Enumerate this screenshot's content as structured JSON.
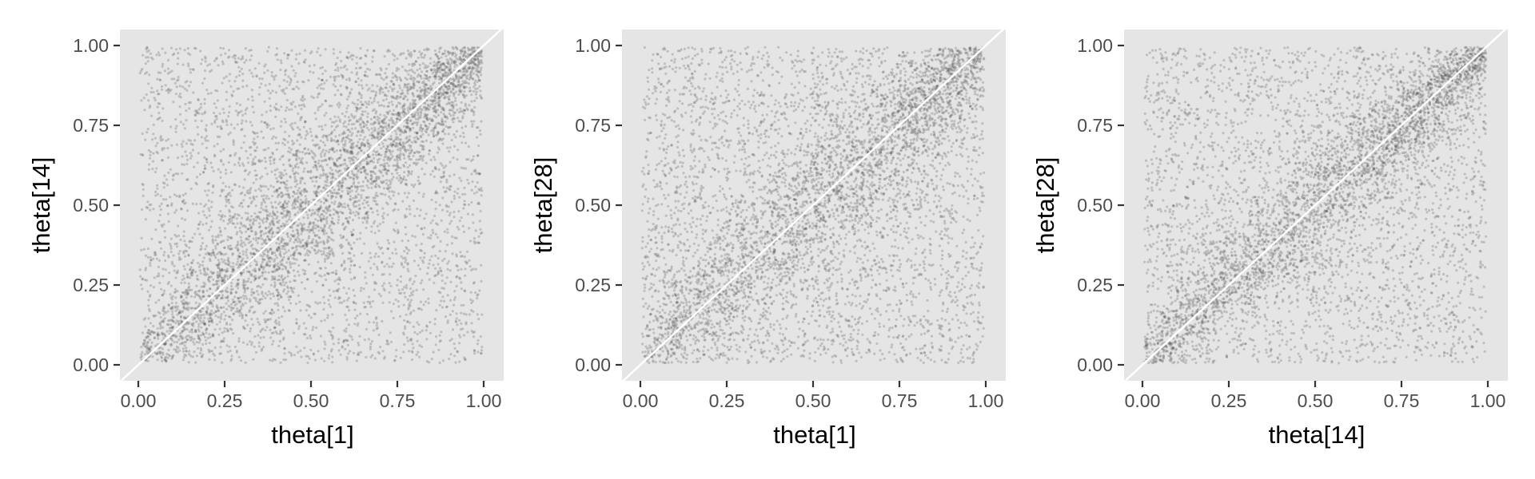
{
  "figure": {
    "background": "#ffffff",
    "panel_background": "#e5e5e5",
    "point_color": "#595959",
    "reference_line_color": "#ffffff",
    "tick_color": "#333333",
    "tick_label_color": "#4d4d4d"
  },
  "chart_data": [
    {
      "type": "scatter",
      "title": "",
      "xlabel": "theta[1]",
      "ylabel": "theta[14]",
      "xlim": [
        0,
        1
      ],
      "ylim": [
        0,
        1
      ],
      "x_ticks": [
        "0.00",
        "0.25",
        "0.50",
        "0.75",
        "1.00"
      ],
      "y_ticks": [
        "0.00",
        "0.25",
        "0.50",
        "0.75",
        "1.00"
      ],
      "grid": false,
      "reference_line": {
        "slope": 1,
        "intercept": 0
      },
      "point_count": 6000,
      "points_description": "dense cloud concentrated along y = x, denser near (1,1), with a sparse uniform background over the unit square",
      "concentration_ratio": 0.5,
      "spread_sd": 0.085
    },
    {
      "type": "scatter",
      "title": "",
      "xlabel": "theta[1]",
      "ylabel": "theta[28]",
      "xlim": [
        0,
        1
      ],
      "ylim": [
        0,
        1
      ],
      "x_ticks": [
        "0.00",
        "0.25",
        "0.50",
        "0.75",
        "1.00"
      ],
      "y_ticks": [
        "0.00",
        "0.25",
        "0.50",
        "0.75",
        "1.00"
      ],
      "grid": false,
      "reference_line": {
        "slope": 1,
        "intercept": 0
      },
      "point_count": 6000,
      "points_description": "cloud concentrated along y = x with broader spread, sparse uniform background",
      "concentration_ratio": 0.47,
      "spread_sd": 0.1
    },
    {
      "type": "scatter",
      "title": "",
      "xlabel": "theta[14]",
      "ylabel": "theta[28]",
      "xlim": [
        0,
        1
      ],
      "ylim": [
        0,
        1
      ],
      "x_ticks": [
        "0.00",
        "0.25",
        "0.50",
        "0.75",
        "1.00"
      ],
      "y_ticks": [
        "0.00",
        "0.25",
        "0.50",
        "0.75",
        "1.00"
      ],
      "grid": false,
      "reference_line": {
        "slope": 1,
        "intercept": 0
      },
      "point_count": 6000,
      "points_description": "tight cloud concentrated along y = x, dense at both ends, sparse uniform background",
      "concentration_ratio": 0.5,
      "spread_sd": 0.075
    }
  ]
}
